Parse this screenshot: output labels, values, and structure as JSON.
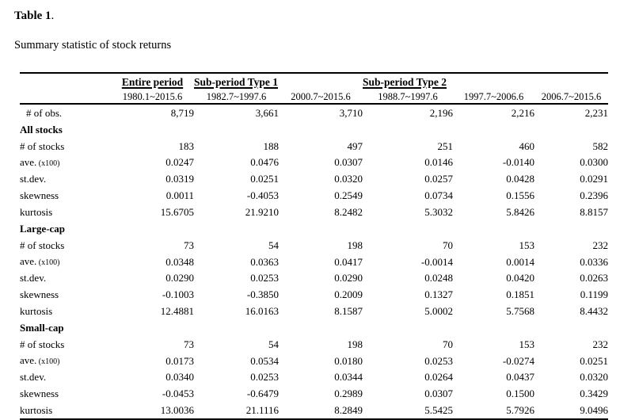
{
  "page": {
    "title_bold": "Table 1",
    "title_period": ".",
    "subtitle": "Summary statistic of stock returns"
  },
  "colors": {
    "text": "#000000",
    "background": "#ffffff",
    "rule": "#000000"
  },
  "table": {
    "group_headers": [
      {
        "label": "Entire period",
        "span": 1
      },
      {
        "label": "Sub-period Type 1",
        "span": 2
      },
      {
        "label": "Sub-period Type 2",
        "span": 3
      }
    ],
    "period_headers": [
      "1980.1~2015.6",
      "1982.7~1997.6",
      "2000.7~2015.6",
      "1988.7~1997.6",
      "1997.7~2006.6",
      "2006.7~2015.6"
    ],
    "rows": [
      {
        "type": "data",
        "indent": false,
        "label": "# of obs.",
        "values": [
          "8,719",
          "3,661",
          "3,710",
          "2,196",
          "2,216",
          "2,231"
        ]
      },
      {
        "type": "section",
        "label": "All stocks"
      },
      {
        "type": "data",
        "indent": true,
        "label": "# of stocks",
        "values": [
          "183",
          "188",
          "497",
          "251",
          "460",
          "582"
        ]
      },
      {
        "type": "data",
        "indent": true,
        "label": "ave.",
        "label_small": "(x100)",
        "values": [
          "0.0247",
          "0.0476",
          "0.0307",
          "0.0146",
          "-0.0140",
          "0.0300"
        ]
      },
      {
        "type": "data",
        "indent": true,
        "label": "st.dev.",
        "values": [
          "0.0319",
          "0.0251",
          "0.0320",
          "0.0257",
          "0.0428",
          "0.0291"
        ]
      },
      {
        "type": "data",
        "indent": true,
        "label": "skewness",
        "values": [
          "0.0011",
          "-0.4053",
          "0.2549",
          "0.0734",
          "0.1556",
          "0.2396"
        ]
      },
      {
        "type": "data",
        "indent": true,
        "label": "kurtosis",
        "values": [
          "15.6705",
          "21.9210",
          "8.2482",
          "5.3032",
          "5.8426",
          "8.8157"
        ]
      },
      {
        "type": "section",
        "label": "Large-cap"
      },
      {
        "type": "data",
        "indent": true,
        "label": "# of stocks",
        "values": [
          "73",
          "54",
          "198",
          "70",
          "153",
          "232"
        ]
      },
      {
        "type": "data",
        "indent": true,
        "label": "ave.",
        "label_small": "(x100)",
        "values": [
          "0.0348",
          "0.0363",
          "0.0417",
          "-0.0014",
          "0.0014",
          "0.0336"
        ]
      },
      {
        "type": "data",
        "indent": true,
        "label": "st.dev.",
        "values": [
          "0.0290",
          "0.0253",
          "0.0290",
          "0.0248",
          "0.0420",
          "0.0263"
        ]
      },
      {
        "type": "data",
        "indent": true,
        "label": "skewness",
        "values": [
          "-0.1003",
          "-0.3850",
          "0.2009",
          "0.1327",
          "0.1851",
          "0.1199"
        ]
      },
      {
        "type": "data",
        "indent": true,
        "label": "kurtosis",
        "values": [
          "12.4881",
          "16.0163",
          "8.1587",
          "5.0002",
          "5.7568",
          "8.4432"
        ]
      },
      {
        "type": "section",
        "label": "Small-cap"
      },
      {
        "type": "data",
        "indent": true,
        "label": "# of stocks",
        "values": [
          "73",
          "54",
          "198",
          "70",
          "153",
          "232"
        ]
      },
      {
        "type": "data",
        "indent": true,
        "label": "ave.",
        "label_small": "(x100)",
        "values": [
          "0.0173",
          "0.0534",
          "0.0180",
          "0.0253",
          "-0.0274",
          "0.0251"
        ]
      },
      {
        "type": "data",
        "indent": true,
        "label": "st.dev.",
        "values": [
          "0.0340",
          "0.0253",
          "0.0344",
          "0.0264",
          "0.0437",
          "0.0320"
        ]
      },
      {
        "type": "data",
        "indent": true,
        "label": "skewness",
        "values": [
          "-0.0453",
          "-0.6479",
          "0.2989",
          "0.0307",
          "0.1500",
          "0.3429"
        ]
      },
      {
        "type": "data",
        "indent": true,
        "label": "kurtosis",
        "values": [
          "13.0036",
          "21.1116",
          "8.2849",
          "5.5425",
          "5.7926",
          "9.0496"
        ]
      }
    ]
  }
}
